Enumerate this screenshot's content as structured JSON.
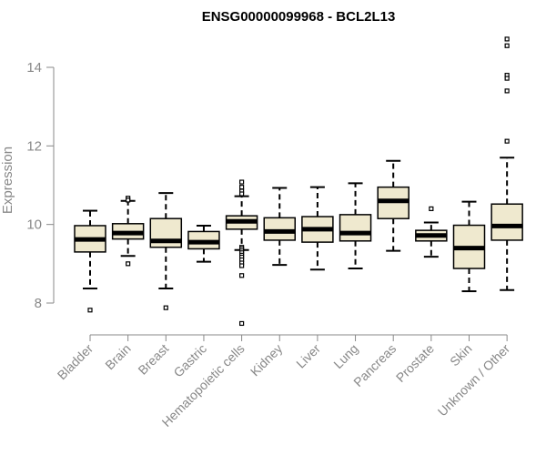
{
  "chart_data": {
    "type": "box",
    "title": "ENSG00000099968 - BCL2L13",
    "ylabel": "Expression",
    "xlabel": "",
    "ylim": [
      7.3,
      14.9
    ],
    "yticks": [
      8,
      10,
      12,
      14
    ],
    "grid": false,
    "colors": {
      "box_fill": "#efe9cf",
      "median": "#000000",
      "whisker": "#000000",
      "axis": "#888888"
    },
    "categories": [
      "Bladder",
      "Brain",
      "Breast",
      "Gastric",
      "Hematopoietic cells",
      "Kidney",
      "Liver",
      "Lung",
      "Pancreas",
      "Prostate",
      "Skin",
      "Unknown / Other"
    ],
    "boxes": [
      {
        "category": "Bladder",
        "whisker_low": 8.37,
        "q1": 9.3,
        "median": 9.62,
        "q3": 9.97,
        "whisker_high": 10.35,
        "outliers": [
          7.82
        ]
      },
      {
        "category": "Brain",
        "whisker_low": 9.2,
        "q1": 9.63,
        "median": 9.78,
        "q3": 10.02,
        "whisker_high": 10.6,
        "outliers": [
          10.67,
          10.62,
          9.0
        ]
      },
      {
        "category": "Breast",
        "whisker_low": 8.37,
        "q1": 9.42,
        "median": 9.58,
        "q3": 10.15,
        "whisker_high": 10.8,
        "outliers": [
          7.88
        ]
      },
      {
        "category": "Gastric",
        "whisker_low": 9.05,
        "q1": 9.38,
        "median": 9.55,
        "q3": 9.82,
        "whisker_high": 9.97,
        "outliers": []
      },
      {
        "category": "Hematopoietic cells",
        "whisker_low": 9.35,
        "q1": 9.88,
        "median": 10.08,
        "q3": 10.22,
        "whisker_high": 10.72,
        "outliers": [
          11.08,
          10.95,
          10.85,
          10.78,
          9.42,
          9.38,
          9.33,
          9.28,
          9.22,
          9.17,
          9.1,
          9.02,
          8.95,
          8.7,
          7.48
        ]
      },
      {
        "category": "Kidney",
        "whisker_low": 8.97,
        "q1": 9.6,
        "median": 9.82,
        "q3": 10.17,
        "whisker_high": 10.93,
        "outliers": []
      },
      {
        "category": "Liver",
        "whisker_low": 8.85,
        "q1": 9.55,
        "median": 9.88,
        "q3": 10.2,
        "whisker_high": 10.95,
        "outliers": []
      },
      {
        "category": "Lung",
        "whisker_low": 8.88,
        "q1": 9.58,
        "median": 9.78,
        "q3": 10.25,
        "whisker_high": 11.05,
        "outliers": []
      },
      {
        "category": "Pancreas",
        "whisker_low": 9.33,
        "q1": 10.15,
        "median": 10.6,
        "q3": 10.95,
        "whisker_high": 11.62,
        "outliers": []
      },
      {
        "category": "Prostate",
        "whisker_low": 9.18,
        "q1": 9.58,
        "median": 9.72,
        "q3": 9.85,
        "whisker_high": 10.05,
        "outliers": [
          10.4
        ]
      },
      {
        "category": "Skin",
        "whisker_low": 8.3,
        "q1": 8.88,
        "median": 9.4,
        "q3": 9.98,
        "whisker_high": 10.58,
        "outliers": []
      },
      {
        "category": "Unknown / Other",
        "whisker_low": 8.33,
        "q1": 9.6,
        "median": 9.96,
        "q3": 10.52,
        "whisker_high": 11.7,
        "outliers": [
          14.72,
          14.55,
          13.8,
          13.72,
          13.4,
          12.12
        ]
      }
    ]
  }
}
